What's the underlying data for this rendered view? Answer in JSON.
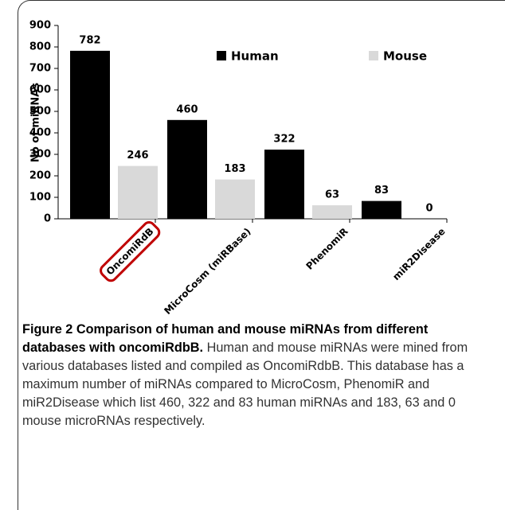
{
  "chart_data": {
    "type": "bar",
    "y_label": "No of miRNAs",
    "categories": [
      "OncomiRdB",
      "MicroCosm (miRBase)",
      "PhenomiR",
      "miR2Disease"
    ],
    "series": [
      {
        "name": "Human",
        "color": "#000000",
        "values": [
          782,
          460,
          322,
          83
        ]
      },
      {
        "name": "Mouse",
        "color": "#d9d9d9",
        "values": [
          246,
          183,
          63,
          0
        ]
      }
    ],
    "highlight_color": "#c00000",
    "ylim": [
      0,
      900
    ],
    "yticks": [
      0,
      100,
      200,
      300,
      400,
      500,
      600,
      700,
      800,
      900
    ],
    "grid": false
  },
  "caption": {
    "title": "Figure 2 Comparison of human and mouse miRNAs from different databases with oncomiRdbB.",
    "text": "Human and mouse miRNAs were mined from various databases listed and compiled as OncomiRdbB. This database has a maximum number of miRNAs compared to MicroCosm, PhenomiR and miR2Disease which list 460, 322 and 83 human miRNAs and 183, 63 and 0 mouse microRNAs respectively."
  }
}
